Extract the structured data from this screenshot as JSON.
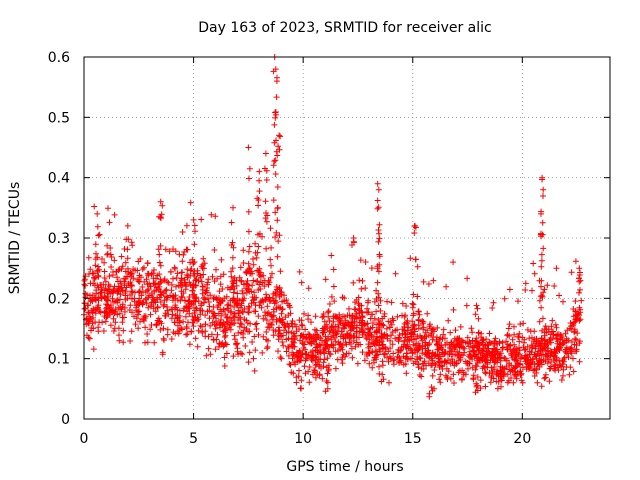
{
  "chart_data": {
    "type": "scatter",
    "title": "Day 163 of 2023, SRMTID for receiver alic",
    "xlabel": "GPS time / hours",
    "ylabel": "SRMTID / TECUs",
    "xlim": [
      0,
      24
    ],
    "ylim": [
      0,
      0.6
    ],
    "xticks": [
      "0",
      "5",
      "10",
      "15",
      "20"
    ],
    "yticks": [
      "0",
      "0.1",
      "0.2",
      "0.3",
      "0.4",
      "0.5",
      "0.6"
    ],
    "grid": true,
    "marker": "+",
    "marker_color": "#ff0000",
    "point_count_approx": 2400,
    "series": [
      {
        "name": "SRMTID",
        "color": "#ff0000",
        "trend": [
          {
            "x": 0.0,
            "y": 0.19,
            "spread": 0.05
          },
          {
            "x": 1.0,
            "y": 0.2,
            "spread": 0.06
          },
          {
            "x": 2.0,
            "y": 0.2,
            "spread": 0.07
          },
          {
            "x": 3.0,
            "y": 0.2,
            "spread": 0.07
          },
          {
            "x": 4.0,
            "y": 0.19,
            "spread": 0.07
          },
          {
            "x": 5.0,
            "y": 0.2,
            "spread": 0.07
          },
          {
            "x": 6.0,
            "y": 0.17,
            "spread": 0.06
          },
          {
            "x": 7.0,
            "y": 0.18,
            "spread": 0.07
          },
          {
            "x": 8.0,
            "y": 0.2,
            "spread": 0.08
          },
          {
            "x": 8.8,
            "y": 0.19,
            "spread": 0.07
          },
          {
            "x": 9.5,
            "y": 0.13,
            "spread": 0.05
          },
          {
            "x": 10.5,
            "y": 0.12,
            "spread": 0.05
          },
          {
            "x": 11.5,
            "y": 0.14,
            "spread": 0.05
          },
          {
            "x": 12.5,
            "y": 0.15,
            "spread": 0.05
          },
          {
            "x": 13.5,
            "y": 0.13,
            "spread": 0.05
          },
          {
            "x": 14.5,
            "y": 0.13,
            "spread": 0.05
          },
          {
            "x": 15.5,
            "y": 0.13,
            "spread": 0.05
          },
          {
            "x": 16.5,
            "y": 0.1,
            "spread": 0.04
          },
          {
            "x": 17.5,
            "y": 0.11,
            "spread": 0.04
          },
          {
            "x": 18.5,
            "y": 0.1,
            "spread": 0.04
          },
          {
            "x": 19.5,
            "y": 0.1,
            "spread": 0.04
          },
          {
            "x": 20.5,
            "y": 0.11,
            "spread": 0.04
          },
          {
            "x": 21.5,
            "y": 0.12,
            "spread": 0.05
          },
          {
            "x": 22.0,
            "y": 0.1,
            "spread": 0.04
          },
          {
            "x": 22.7,
            "y": 0.18,
            "spread": 0.06
          }
        ],
        "peaks": [
          {
            "x": 0.6,
            "y": 0.34
          },
          {
            "x": 2.0,
            "y": 0.32
          },
          {
            "x": 3.5,
            "y": 0.36
          },
          {
            "x": 4.5,
            "y": 0.31
          },
          {
            "x": 5.0,
            "y": 0.33
          },
          {
            "x": 6.8,
            "y": 0.35
          },
          {
            "x": 7.5,
            "y": 0.45
          },
          {
            "x": 8.0,
            "y": 0.41
          },
          {
            "x": 8.3,
            "y": 0.44
          },
          {
            "x": 8.7,
            "y": 0.6
          },
          {
            "x": 8.75,
            "y": 0.58
          },
          {
            "x": 8.8,
            "y": 0.56
          },
          {
            "x": 8.9,
            "y": 0.47
          },
          {
            "x": 12.3,
            "y": 0.3
          },
          {
            "x": 13.4,
            "y": 0.39
          },
          {
            "x": 13.45,
            "y": 0.38
          },
          {
            "x": 15.1,
            "y": 0.32
          },
          {
            "x": 20.9,
            "y": 0.4
          },
          {
            "x": 20.95,
            "y": 0.38
          },
          {
            "x": 20.85,
            "y": 0.34
          },
          {
            "x": 22.6,
            "y": 0.25
          }
        ],
        "lows": [
          {
            "x": 9.8,
            "y": 0.04
          },
          {
            "x": 11.0,
            "y": 0.04
          },
          {
            "x": 15.9,
            "y": 0.03
          },
          {
            "x": 18.0,
            "y": 0.04
          }
        ]
      }
    ]
  }
}
